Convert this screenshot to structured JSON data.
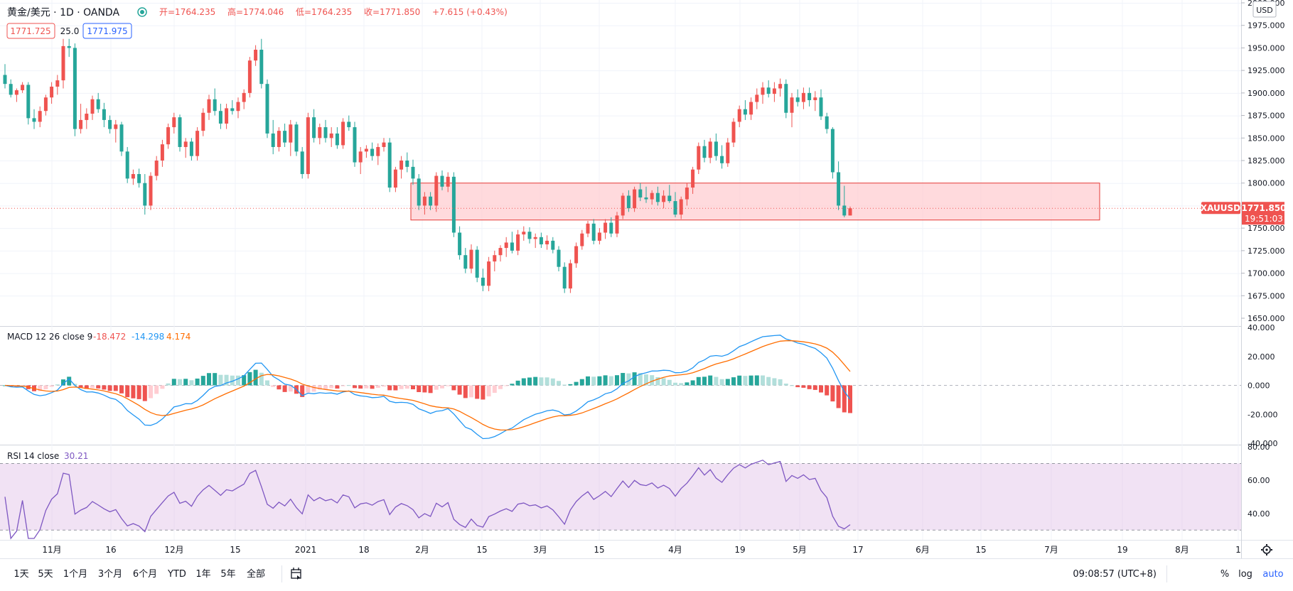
{
  "header": {
    "symbol": "黄金/美元 · 1D · OANDA",
    "open": "开=1764.235",
    "high": "高=1774.046",
    "low": "低=1764.235",
    "close": "收=1771.850",
    "change": "+7.615 (+0.43%)",
    "bid": "1771.725",
    "spread": "25.0",
    "ask": "1771.975"
  },
  "price_axis": {
    "currency": "USD",
    "ticks": [
      "2000.000",
      "1975.000",
      "1950.000",
      "1925.000",
      "1900.000",
      "1875.000",
      "1850.000",
      "1825.000",
      "1800.000",
      "1775.000",
      "1750.000",
      "1725.000",
      "1700.000",
      "1675.000",
      "1650.000"
    ],
    "symbol_tag": "XAUUSD",
    "last_price": "1771.850",
    "countdown": "19:51:03"
  },
  "macd": {
    "label": "MACD 12 26 close 9",
    "hist_value": "-18.472",
    "macd_value": "-14.298",
    "signal_value": "4.174",
    "ticks": [
      "40.000",
      "20.000",
      "0.000",
      "-20.000",
      "-40.000"
    ]
  },
  "rsi": {
    "label": "RSI 14 close",
    "value": "30.21",
    "ticks": [
      "80.00",
      "60.00",
      "40.00"
    ]
  },
  "time_axis": {
    "labels": [
      "11月",
      "16",
      "12月",
      "15",
      "2021",
      "18",
      "2月",
      "15",
      "3月",
      "15",
      "4月",
      "19",
      "5月",
      "17",
      "6月",
      "15",
      "7月",
      "19",
      "8月",
      "1"
    ]
  },
  "bottom_bar": {
    "ranges": [
      "1天",
      "5天",
      "1个月",
      "3个月",
      "6个月",
      "YTD",
      "1年",
      "5年",
      "全部"
    ],
    "clock": "09:08:57 (UTC+8)",
    "percent": "%",
    "log": "log",
    "auto": "auto"
  },
  "colors": {
    "up": "#ef5350",
    "down": "#26a69a",
    "macd_line": "#2196f3",
    "signal_line": "#ff6d00",
    "rsi_line": "#7e57c2",
    "zone_fill": "#ffcdd2",
    "zone_border": "#e53935"
  },
  "chart_data": {
    "type": "candlestick",
    "title": "黄金/美元 · 1D · OANDA",
    "ylim": [
      1650,
      2000
    ],
    "ohlc": [
      [
        1920,
        1932,
        1905,
        1910
      ],
      [
        1910,
        1915,
        1895,
        1898
      ],
      [
        1898,
        1905,
        1890,
        1903
      ],
      [
        1903,
        1912,
        1900,
        1909
      ],
      [
        1909,
        1912,
        1865,
        1872
      ],
      [
        1872,
        1882,
        1860,
        1868
      ],
      [
        1868,
        1885,
        1862,
        1880
      ],
      [
        1880,
        1898,
        1875,
        1895
      ],
      [
        1895,
        1912,
        1888,
        1907
      ],
      [
        1907,
        1920,
        1898,
        1914
      ],
      [
        1914,
        1960,
        1905,
        1952
      ],
      [
        1952,
        1960,
        1940,
        1950
      ],
      [
        1950,
        1955,
        1852,
        1860
      ],
      [
        1860,
        1888,
        1855,
        1870
      ],
      [
        1870,
        1883,
        1860,
        1877
      ],
      [
        1877,
        1897,
        1870,
        1893
      ],
      [
        1893,
        1900,
        1878,
        1882
      ],
      [
        1882,
        1889,
        1862,
        1870
      ],
      [
        1870,
        1875,
        1855,
        1860
      ],
      [
        1860,
        1870,
        1845,
        1865
      ],
      [
        1865,
        1868,
        1830,
        1835
      ],
      [
        1835,
        1840,
        1800,
        1805
      ],
      [
        1805,
        1815,
        1798,
        1810
      ],
      [
        1810,
        1816,
        1795,
        1800
      ],
      [
        1800,
        1810,
        1765,
        1775
      ],
      [
        1775,
        1812,
        1770,
        1808
      ],
      [
        1808,
        1830,
        1803,
        1825
      ],
      [
        1825,
        1848,
        1818,
        1843
      ],
      [
        1843,
        1866,
        1838,
        1862
      ],
      [
        1862,
        1878,
        1855,
        1873
      ],
      [
        1873,
        1876,
        1835,
        1840
      ],
      [
        1840,
        1850,
        1828,
        1846
      ],
      [
        1846,
        1850,
        1825,
        1830
      ],
      [
        1830,
        1862,
        1825,
        1858
      ],
      [
        1858,
        1883,
        1852,
        1878
      ],
      [
        1878,
        1898,
        1870,
        1893
      ],
      [
        1893,
        1905,
        1875,
        1880
      ],
      [
        1880,
        1888,
        1860,
        1866
      ],
      [
        1866,
        1888,
        1860,
        1883
      ],
      [
        1883,
        1892,
        1876,
        1880
      ],
      [
        1880,
        1895,
        1872,
        1890
      ],
      [
        1890,
        1904,
        1882,
        1900
      ],
      [
        1900,
        1940,
        1895,
        1936
      ],
      [
        1936,
        1953,
        1930,
        1948
      ],
      [
        1948,
        1960,
        1905,
        1910
      ],
      [
        1910,
        1915,
        1850,
        1855
      ],
      [
        1855,
        1870,
        1832,
        1840
      ],
      [
        1840,
        1862,
        1835,
        1858
      ],
      [
        1858,
        1866,
        1840,
        1845
      ],
      [
        1845,
        1870,
        1830,
        1865
      ],
      [
        1865,
        1868,
        1830,
        1835
      ],
      [
        1835,
        1840,
        1805,
        1810
      ],
      [
        1810,
        1878,
        1805,
        1873
      ],
      [
        1873,
        1882,
        1845,
        1850
      ],
      [
        1850,
        1866,
        1843,
        1862
      ],
      [
        1862,
        1870,
        1845,
        1850
      ],
      [
        1850,
        1862,
        1840,
        1855
      ],
      [
        1855,
        1862,
        1838,
        1842
      ],
      [
        1842,
        1872,
        1838,
        1868
      ],
      [
        1868,
        1875,
        1858,
        1862
      ],
      [
        1862,
        1868,
        1818,
        1823
      ],
      [
        1823,
        1840,
        1810,
        1835
      ],
      [
        1835,
        1842,
        1828,
        1838
      ],
      [
        1838,
        1845,
        1825,
        1830
      ],
      [
        1830,
        1844,
        1820,
        1840
      ],
      [
        1840,
        1850,
        1835,
        1845
      ],
      [
        1845,
        1850,
        1790,
        1795
      ],
      [
        1795,
        1818,
        1790,
        1815
      ],
      [
        1815,
        1830,
        1805,
        1825
      ],
      [
        1825,
        1834,
        1812,
        1818
      ],
      [
        1818,
        1826,
        1798,
        1805
      ],
      [
        1805,
        1810,
        1770,
        1775
      ],
      [
        1775,
        1790,
        1765,
        1785
      ],
      [
        1785,
        1790,
        1770,
        1775
      ],
      [
        1775,
        1812,
        1768,
        1808
      ],
      [
        1808,
        1814,
        1792,
        1796
      ],
      [
        1796,
        1812,
        1790,
        1807
      ],
      [
        1807,
        1812,
        1740,
        1745
      ],
      [
        1745,
        1752,
        1715,
        1720
      ],
      [
        1720,
        1728,
        1700,
        1705
      ],
      [
        1705,
        1732,
        1700,
        1726
      ],
      [
        1726,
        1730,
        1690,
        1695
      ],
      [
        1695,
        1705,
        1680,
        1686
      ],
      [
        1686,
        1718,
        1680,
        1713
      ],
      [
        1713,
        1725,
        1702,
        1720
      ],
      [
        1720,
        1731,
        1713,
        1728
      ],
      [
        1728,
        1740,
        1718,
        1734
      ],
      [
        1734,
        1746,
        1722,
        1725
      ],
      [
        1725,
        1748,
        1720,
        1743
      ],
      [
        1743,
        1752,
        1736,
        1746
      ],
      [
        1746,
        1751,
        1733,
        1738
      ],
      [
        1738,
        1744,
        1728,
        1740
      ],
      [
        1740,
        1745,
        1728,
        1732
      ],
      [
        1732,
        1742,
        1726,
        1736
      ],
      [
        1736,
        1740,
        1722,
        1726
      ],
      [
        1726,
        1730,
        1702,
        1707
      ],
      [
        1707,
        1712,
        1678,
        1683
      ],
      [
        1683,
        1715,
        1678,
        1711
      ],
      [
        1711,
        1734,
        1706,
        1730
      ],
      [
        1730,
        1748,
        1726,
        1744
      ],
      [
        1744,
        1758,
        1740,
        1755
      ],
      [
        1755,
        1760,
        1732,
        1736
      ],
      [
        1736,
        1750,
        1732,
        1745
      ],
      [
        1745,
        1760,
        1738,
        1756
      ],
      [
        1756,
        1762,
        1740,
        1744
      ],
      [
        1744,
        1768,
        1740,
        1764
      ],
      [
        1764,
        1789,
        1760,
        1786
      ],
      [
        1786,
        1792,
        1768,
        1772
      ],
      [
        1772,
        1796,
        1768,
        1793
      ],
      [
        1793,
        1800,
        1780,
        1784
      ],
      [
        1784,
        1796,
        1778,
        1782
      ],
      [
        1782,
        1792,
        1776,
        1789
      ],
      [
        1789,
        1796,
        1775,
        1779
      ],
      [
        1779,
        1792,
        1772,
        1786
      ],
      [
        1786,
        1798,
        1778,
        1780
      ],
      [
        1780,
        1790,
        1762,
        1765
      ],
      [
        1765,
        1785,
        1760,
        1782
      ],
      [
        1782,
        1800,
        1775,
        1795
      ],
      [
        1795,
        1818,
        1788,
        1815
      ],
      [
        1815,
        1845,
        1810,
        1841
      ],
      [
        1841,
        1848,
        1823,
        1828
      ],
      [
        1828,
        1850,
        1822,
        1846
      ],
      [
        1846,
        1855,
        1825,
        1830
      ],
      [
        1830,
        1842,
        1816,
        1822
      ],
      [
        1822,
        1850,
        1818,
        1845
      ],
      [
        1845,
        1872,
        1840,
        1868
      ],
      [
        1868,
        1886,
        1862,
        1882
      ],
      [
        1882,
        1892,
        1870,
        1876
      ],
      [
        1876,
        1895,
        1870,
        1890
      ],
      [
        1890,
        1905,
        1882,
        1898
      ],
      [
        1898,
        1912,
        1888,
        1906
      ],
      [
        1906,
        1914,
        1895,
        1899
      ],
      [
        1899,
        1912,
        1890,
        1905
      ],
      [
        1905,
        1916,
        1896,
        1910
      ],
      [
        1910,
        1915,
        1872,
        1878
      ],
      [
        1878,
        1900,
        1862,
        1895
      ],
      [
        1895,
        1904,
        1885,
        1890
      ],
      [
        1890,
        1906,
        1882,
        1900
      ],
      [
        1900,
        1906,
        1885,
        1892
      ],
      [
        1892,
        1902,
        1880,
        1895
      ],
      [
        1895,
        1904,
        1870,
        1874
      ],
      [
        1874,
        1878,
        1855,
        1860
      ],
      [
        1860,
        1862,
        1805,
        1812
      ],
      [
        1812,
        1824,
        1770,
        1775
      ],
      [
        1775,
        1797,
        1762,
        1764
      ],
      [
        1764,
        1774,
        1764,
        1772
      ]
    ],
    "resistance_zone": [
      1759,
      1800
    ],
    "macd": {
      "hist": -18.472,
      "macd": -14.298,
      "signal": 4.174,
      "ylim": [
        -40,
        40
      ]
    },
    "rsi": {
      "value": 30.21,
      "upper_band": 70,
      "lower_band": 30,
      "ylim": [
        25,
        80
      ]
    }
  }
}
